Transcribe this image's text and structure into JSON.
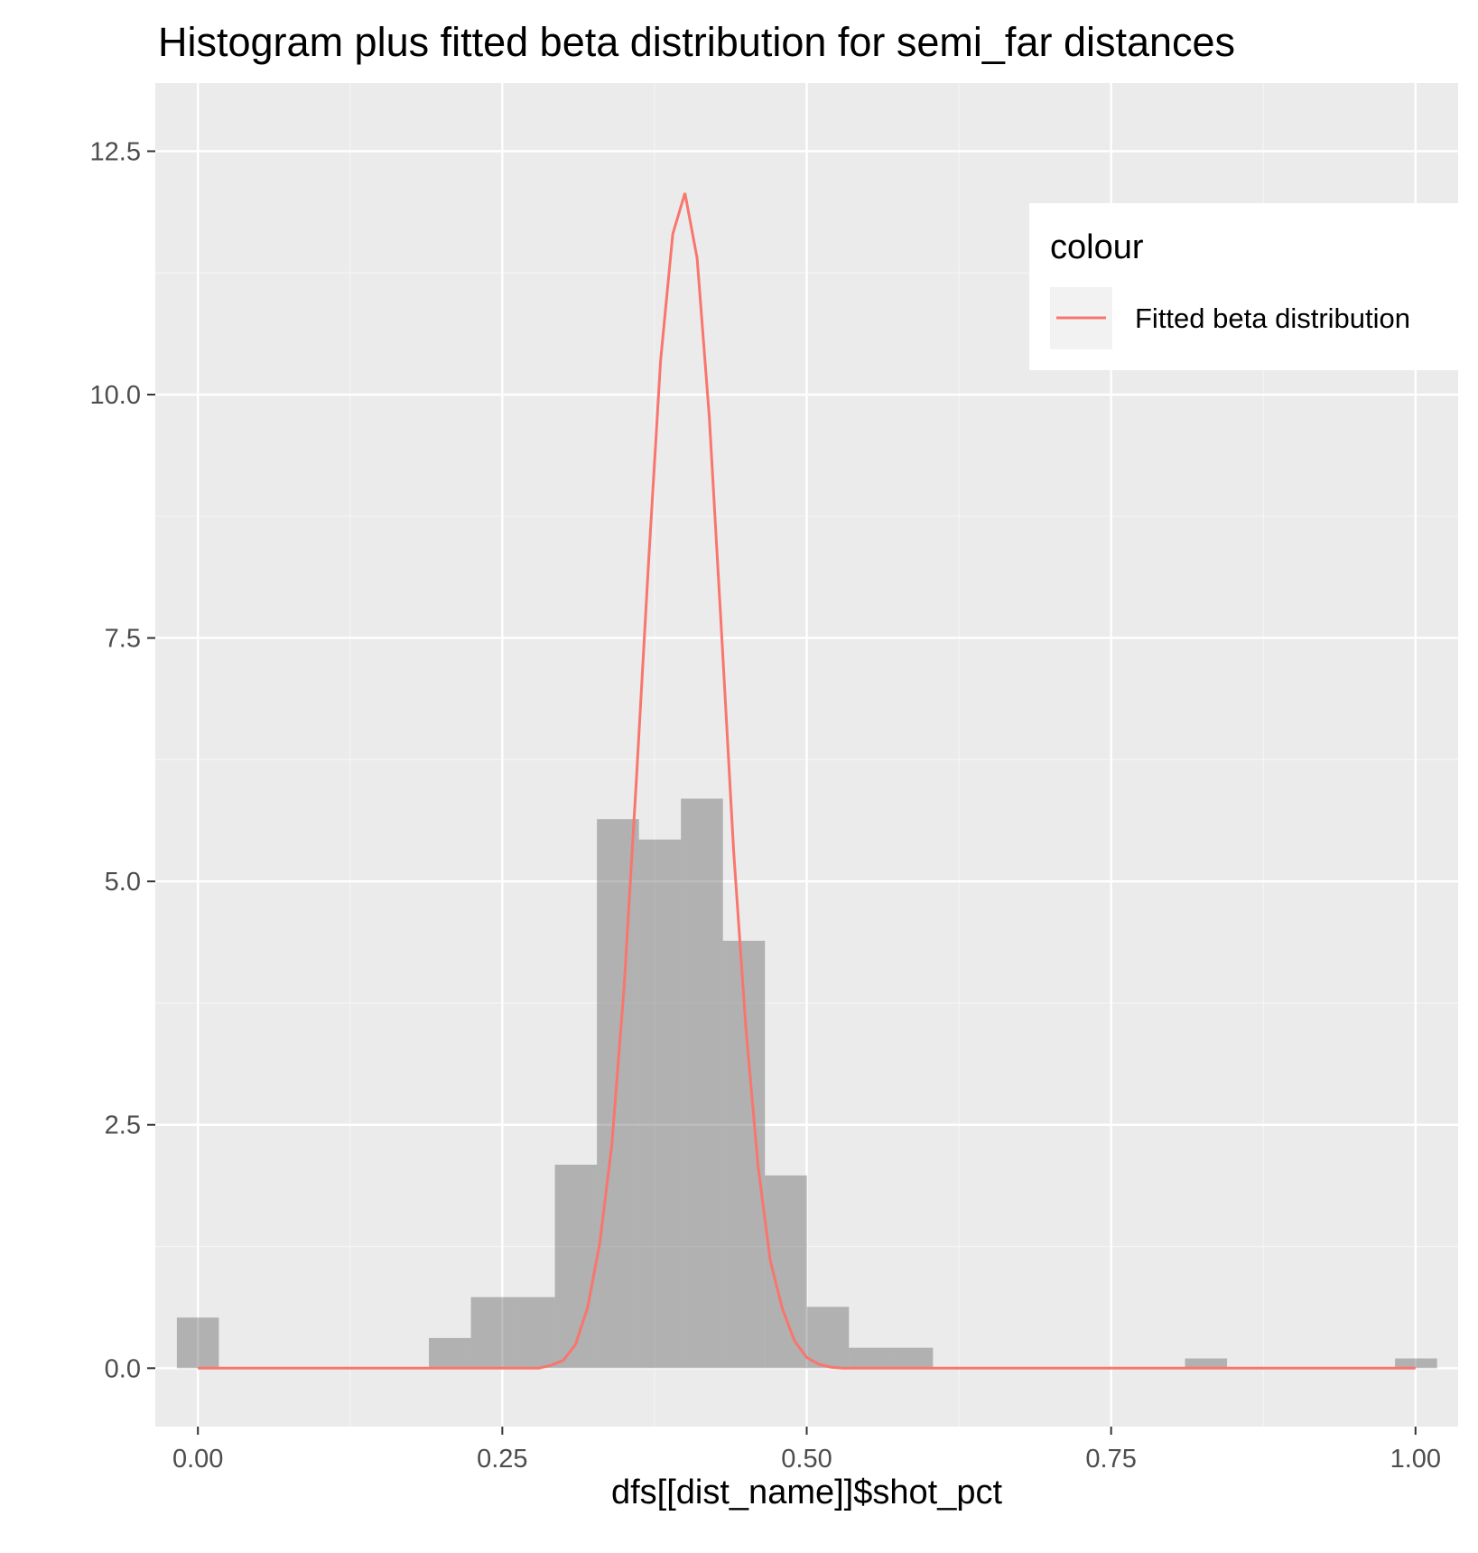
{
  "chart_data": {
    "type": "bar",
    "title": "Histogram plus fitted beta distribution for semi_far distances",
    "xlabel": "dfs[[dist_name]]$shot_pct",
    "ylabel": "",
    "xlim": [
      -0.035,
      1.035
    ],
    "ylim": [
      -0.6,
      13.2
    ],
    "x_ticks": [
      0.0,
      0.25,
      0.5,
      0.75,
      1.0
    ],
    "x_tick_labels": [
      "0.00",
      "0.25",
      "0.50",
      "0.75",
      "1.00"
    ],
    "y_ticks": [
      0.0,
      2.5,
      5.0,
      7.5,
      10.0,
      12.5
    ],
    "y_tick_labels": [
      "0.0",
      "2.5",
      "5.0",
      "7.5",
      "10.0",
      "12.5"
    ],
    "grid": true,
    "histogram": {
      "bin_width": 0.0345,
      "bins": [
        {
          "x0": -0.0173,
          "x1": 0.0172,
          "value": 0.52
        },
        {
          "x0": 0.1897,
          "x1": 0.2242,
          "value": 0.31
        },
        {
          "x0": 0.2242,
          "x1": 0.2587,
          "value": 0.73
        },
        {
          "x0": 0.2587,
          "x1": 0.2932,
          "value": 0.73
        },
        {
          "x0": 0.2932,
          "x1": 0.3277,
          "value": 2.09
        },
        {
          "x0": 0.3277,
          "x1": 0.3622,
          "value": 5.64
        },
        {
          "x0": 0.3622,
          "x1": 0.3967,
          "value": 5.43
        },
        {
          "x0": 0.3967,
          "x1": 0.4312,
          "value": 5.85
        },
        {
          "x0": 0.4312,
          "x1": 0.4657,
          "value": 4.39
        },
        {
          "x0": 0.4657,
          "x1": 0.5002,
          "value": 1.98
        },
        {
          "x0": 0.5002,
          "x1": 0.5347,
          "value": 0.63
        },
        {
          "x0": 0.5347,
          "x1": 0.5692,
          "value": 0.21
        },
        {
          "x0": 0.5692,
          "x1": 0.6037,
          "value": 0.21
        },
        {
          "x0": 0.8107,
          "x1": 0.8452,
          "value": 0.1
        },
        {
          "x0": 0.9832,
          "x1": 1.0177,
          "value": 0.1
        }
      ]
    },
    "series": [
      {
        "name": "Fitted beta distribution",
        "x": [
          0.0,
          0.28,
          0.29,
          0.3,
          0.31,
          0.32,
          0.33,
          0.34,
          0.35,
          0.36,
          0.37,
          0.38,
          0.39,
          0.4,
          0.41,
          0.42,
          0.43,
          0.44,
          0.45,
          0.46,
          0.47,
          0.48,
          0.49,
          0.5,
          0.51,
          0.52,
          0.53,
          1.0
        ],
        "y": [
          0.0,
          0.0,
          0.03,
          0.08,
          0.24,
          0.62,
          1.28,
          2.3,
          3.91,
          6.02,
          8.25,
          10.35,
          11.65,
          12.07,
          11.4,
          9.77,
          7.57,
          5.31,
          3.5,
          2.08,
          1.11,
          0.61,
          0.28,
          0.11,
          0.04,
          0.01,
          0.0,
          0.0
        ]
      }
    ],
    "legend": {
      "title": "colour",
      "placement": "top-right",
      "entries": [
        "Fitted beta distribution"
      ]
    },
    "colors": {
      "panel_background": "#ebebeb",
      "grid_major": "#ffffff",
      "grid_minor": "#f5f5f5",
      "histogram_fill": "#595959",
      "histogram_opacity": 0.4,
      "line": "#f8766d",
      "legend_key_background": "#f2f2f2"
    }
  }
}
